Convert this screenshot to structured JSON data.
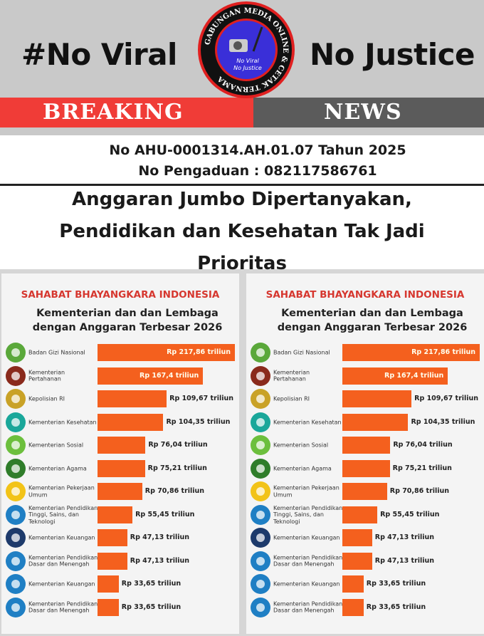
{
  "header": {
    "slogan_left": "#No Viral",
    "slogan_right": "No Justice",
    "logo_ring_text": "GABUNGAN MEDIA ONLINE & CETAK TERNAMA",
    "logo_center_text": "No Viral No Justice",
    "breaking_label": "BREAKING",
    "news_label": "NEWS",
    "colors": {
      "breaking": "#f03c37",
      "news": "#5b5b5b",
      "logo_ring": "#e02020",
      "logo_center": "#3a2fd8"
    }
  },
  "registration": {
    "ahu": "No AHU-0001314.AH.01.07 Tahun 2025",
    "complaint": "No Pengaduan : 082117586761"
  },
  "headline": {
    "line1": "Anggaran Jumbo Dipertanyakan,",
    "line2": "Pendidikan dan Kesehatan Tak Jadi",
    "line3": "Prioritas"
  },
  "chart_data": [
    {
      "type": "bar",
      "orientation": "horizontal",
      "brand": "SAHABAT BHAYANGKARA INDONESIA",
      "title_line1": "Kementerian dan dan Lembaga",
      "title_line2": "dengan Anggaran Terbesar 2026",
      "bar_color": "#f4601e",
      "unit": "Rp triliun",
      "categories": [
        "Badan Gizi Nasional",
        "Kementerian Pertahanan",
        "Kepolisian RI",
        "Kementerian Kesehatan",
        "Kementerian Sosial",
        "Kementerian Agama",
        "Kementerian Pekerjaan Umum",
        "Kementerian Pendidikan Tinggi, Sains, dan Teknologi",
        "Kementerian Keuangan",
        "Kementerian Pendidikan Dasar dan Menengah",
        "Kementerian Keuangan",
        "Kementerian Pendidikan Dasar dan Menengah"
      ],
      "values": [
        217.86,
        167.4,
        109.67,
        104.35,
        76.04,
        75.21,
        70.86,
        55.45,
        47.13,
        47.13,
        33.65,
        33.65
      ],
      "value_labels": [
        "Rp 217,86 triliun",
        "Rp 167,4 triliun",
        "Rp 109,67 triliun",
        "Rp 104,35 triliun",
        "Rp 76,04 triliun",
        "Rp 75,21 triliun",
        "Rp 70,86 triliun",
        "Rp 55,45 triliun",
        "Rp 47,13 triliun",
        "Rp 47,13 triliun",
        "Rp 33,65 triliun",
        "Rp 33,65 triliun"
      ],
      "icons": [
        "bgn-logo-icon",
        "kemhan-logo-icon",
        "polri-logo-icon",
        "kemenkes-logo-icon",
        "kemensos-logo-icon",
        "kemenag-logo-icon",
        "pu-logo-icon",
        "tut-wuri-logo-icon",
        "kemenkeu-logo-icon",
        "tut-wuri-logo-icon",
        "tut-wuri-logo-icon",
        "tut-wuri-logo-icon"
      ],
      "icon_colors": [
        "#5aa83a",
        "#8a2a1c",
        "#c9a227",
        "#1aa79a",
        "#6cbf3d",
        "#2f7d2a",
        "#f2c318",
        "#1f7fc4",
        "#1d3a6b",
        "#1f7fc4",
        "#1f7fc4",
        "#1f7fc4"
      ]
    },
    {
      "type": "bar",
      "orientation": "horizontal",
      "brand": "SAHABAT BHAYANGKARA INDONESIA",
      "title_line1": "Kementerian dan dan Lembaga",
      "title_line2": "dengan Anggaran Terbesar 2026",
      "bar_color": "#f4601e",
      "unit": "Rp triliun",
      "categories": [
        "Badan Gizi Nasional",
        "Kementerian Pertahanan",
        "Kepolisian RI",
        "Kementerian Kesehatan",
        "Kementerian Sosial",
        "Kementerian Agama",
        "Kementerian Pekerjaan Umum",
        "Kementerian Pendidikan Tinggi, Sains, dan Teknologi",
        "Kementerian Keuangan",
        "Kementerian Pendidikan Dasar dan Menengah",
        "Kementerian Keuangan",
        "Kementerian Pendidikan Dasar dan Menengah"
      ],
      "values": [
        217.86,
        167.4,
        109.67,
        104.35,
        76.04,
        75.21,
        70.86,
        55.45,
        47.13,
        47.13,
        33.65,
        33.65
      ],
      "value_labels": [
        "Rp 217,86 triliun",
        "Rp 167,4 triliun",
        "Rp 109,67 triliun",
        "Rp 104,35 triliun",
        "Rp 76,04 triliun",
        "Rp 75,21 triliun",
        "Rp 70,86 triliun",
        "Rp 55,45 triliun",
        "Rp 47,13 triliun",
        "Rp 47,13 triliun",
        "Rp 33,65 triliun",
        "Rp 33,65 triliun"
      ],
      "icons": [
        "bgn-logo-icon",
        "kemhan-logo-icon",
        "polri-logo-icon",
        "kemenkes-logo-icon",
        "kemensos-logo-icon",
        "kemenag-logo-icon",
        "pu-logo-icon",
        "tut-wuri-logo-icon",
        "kemenkeu-logo-icon",
        "tut-wuri-logo-icon",
        "tut-wuri-logo-icon",
        "tut-wuri-logo-icon"
      ],
      "icon_colors": [
        "#5aa83a",
        "#8a2a1c",
        "#c9a227",
        "#1aa79a",
        "#6cbf3d",
        "#2f7d2a",
        "#f2c318",
        "#1f7fc4",
        "#1d3a6b",
        "#1f7fc4",
        "#1f7fc4",
        "#1f7fc4"
      ]
    }
  ]
}
